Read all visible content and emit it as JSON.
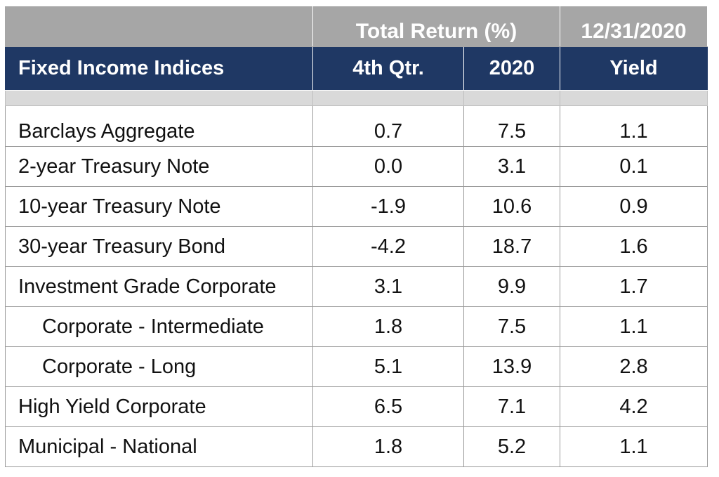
{
  "header": {
    "group_label": "Total Return (%)",
    "date_label": "12/31/2020",
    "col_index": "Fixed Income Indices",
    "col_q4": "4th Qtr.",
    "col_year": "2020",
    "col_yield": "Yield"
  },
  "rows": [
    {
      "name": "Barclays Aggregate",
      "q4": "0.7",
      "year": "7.5",
      "yield": "1.1"
    },
    {
      "name": "2-year Treasury Note",
      "q4": "0.0",
      "year": "3.1",
      "yield": "0.1"
    },
    {
      "name": "10-year Treasury Note",
      "q4": "-1.9",
      "year": "10.6",
      "yield": "0.9"
    },
    {
      "name": "30-year Treasury Bond",
      "q4": "-4.2",
      "year": "18.7",
      "yield": "1.6"
    },
    {
      "name": "Investment Grade Corporate",
      "q4": "3.1",
      "year": "9.9",
      "yield": "1.7"
    },
    {
      "name": "Corporate - Intermediate",
      "q4": "1.8",
      "year": "7.5",
      "yield": "1.1"
    },
    {
      "name": "Corporate - Long",
      "q4": "5.1",
      "year": "13.9",
      "yield": "2.8"
    },
    {
      "name": "High Yield Corporate",
      "q4": "6.5",
      "year": "7.1",
      "yield": "4.2"
    },
    {
      "name": "Municipal - National",
      "q4": "1.8",
      "year": "5.2",
      "yield": "1.1"
    }
  ]
}
